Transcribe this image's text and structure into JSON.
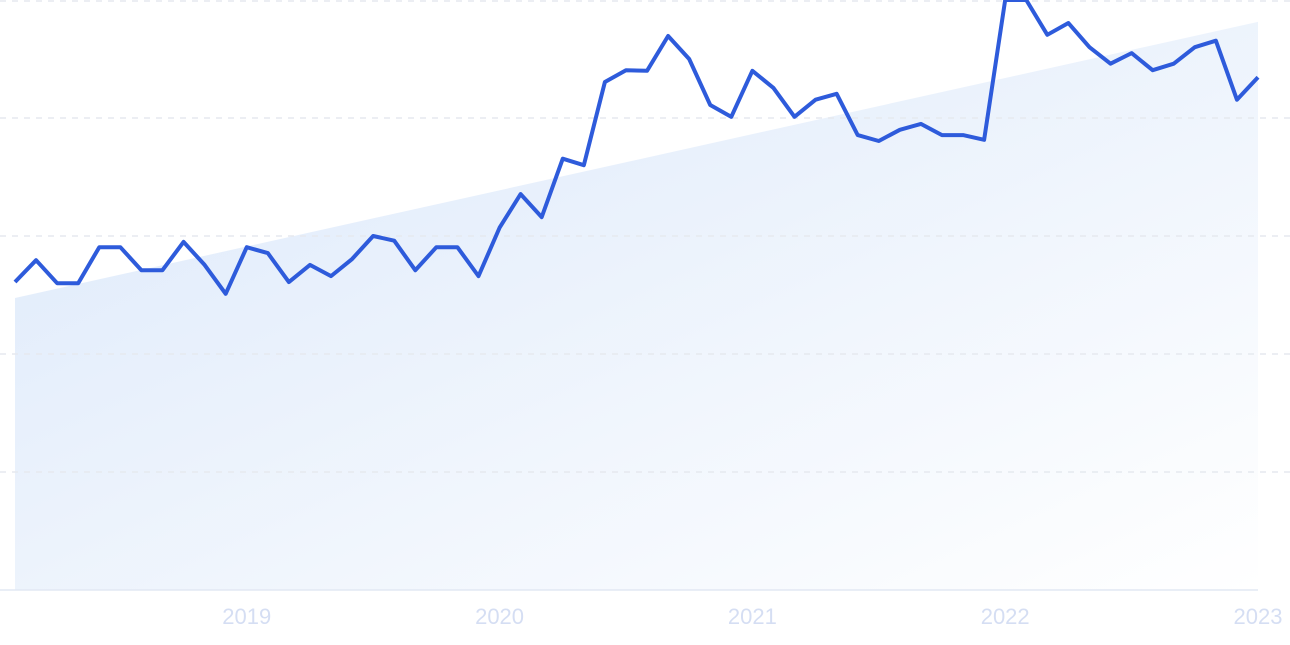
{
  "chart_data": {
    "type": "line",
    "color": "#2e5bdb",
    "x": [
      0,
      1,
      2,
      3,
      4,
      5,
      6,
      7,
      8,
      9,
      10,
      11,
      12,
      13,
      14,
      15,
      16,
      17,
      18,
      19,
      20,
      21,
      22,
      23,
      24,
      25,
      26,
      27,
      28,
      29,
      30,
      31,
      32,
      33,
      34,
      35,
      36,
      37,
      38,
      39,
      40,
      41,
      42,
      43,
      44,
      45,
      46,
      47,
      48,
      49,
      50,
      51,
      52,
      53,
      54,
      55,
      56,
      57,
      58,
      59
    ],
    "values": [
      52.2,
      55.9,
      52.0,
      52.0,
      58.1,
      58.1,
      54.2,
      54.2,
      59.0,
      55.1,
      50.2,
      58.1,
      57.1,
      52.2,
      55.1,
      53.2,
      56.1,
      60.0,
      59.2,
      54.2,
      58.1,
      58.1,
      53.2,
      61.4,
      67.1,
      63.2,
      73.1,
      72.0,
      86.1,
      88.1,
      88.0,
      93.9,
      90.0,
      82.2,
      80.2,
      88.0,
      85.1,
      80.2,
      83.1,
      84.1,
      77.1,
      76.1,
      78.0,
      79.0,
      77.1,
      77.1,
      76.3,
      100,
      100,
      94.1,
      96.1,
      92.0,
      89.2,
      91.0,
      88.1,
      89.2,
      92.0,
      93.1,
      83.1,
      86.9
    ],
    "trend": {
      "x": [
        0,
        59
      ],
      "values": [
        49.5,
        96.3
      ],
      "colors": [
        "#dbe8fa",
        "#ffffff"
      ]
    },
    "xlim": [
      0,
      59
    ],
    "xticks": [
      {
        "value": 11,
        "label": "2019"
      },
      {
        "value": 23,
        "label": "2020"
      },
      {
        "value": 35,
        "label": "2021"
      },
      {
        "value": 47,
        "label": "2022"
      },
      {
        "value": 59,
        "label": "2023"
      }
    ],
    "ylim": [
      0,
      100
    ],
    "yticks": [
      0,
      20,
      40,
      60,
      80,
      100
    ],
    "grid": true
  }
}
